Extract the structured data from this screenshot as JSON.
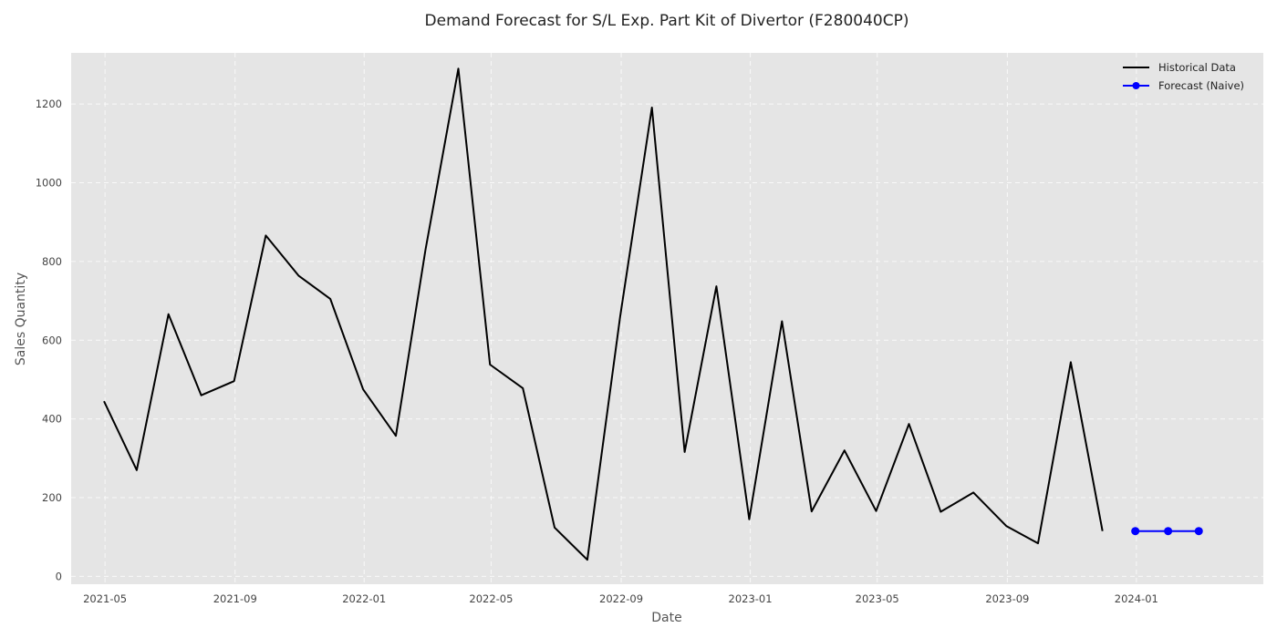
{
  "chart_data": {
    "type": "line",
    "title": "Demand Forecast for S/L Exp. Part Kit of Divertor (F280040CP)",
    "xlabel": "Date",
    "ylabel": "Sales Quantity",
    "grid": true,
    "legend_position": "top-right",
    "background_color": "#e5e5e5",
    "x_tick_labels": [
      "2021-05",
      "2021-09",
      "2022-01",
      "2022-05",
      "2022-09",
      "2023-01",
      "2023-05",
      "2023-09",
      "2024-01"
    ],
    "x_range": [
      "2021-03-30",
      "2024-04-30"
    ],
    "y_ticks": [
      0,
      200,
      400,
      600,
      800,
      1000,
      1200
    ],
    "ylim": [
      -20,
      1330
    ],
    "series": [
      {
        "name": "Historical Data",
        "color": "#000000",
        "marker": "none",
        "points": [
          [
            "2021-04-30",
            445
          ],
          [
            "2021-05-31",
            270
          ],
          [
            "2021-06-30",
            666
          ],
          [
            "2021-07-31",
            460
          ],
          [
            "2021-08-31",
            496
          ],
          [
            "2021-09-30",
            866
          ],
          [
            "2021-10-31",
            764
          ],
          [
            "2021-11-30",
            705
          ],
          [
            "2021-12-31",
            475
          ],
          [
            "2022-01-31",
            357
          ],
          [
            "2022-02-28",
            830
          ],
          [
            "2022-03-31",
            1290
          ],
          [
            "2022-04-30",
            538
          ],
          [
            "2022-05-31",
            478
          ],
          [
            "2022-06-30",
            124
          ],
          [
            "2022-07-31",
            42
          ],
          [
            "2022-08-31",
            660
          ],
          [
            "2022-09-30",
            1191
          ],
          [
            "2022-10-31",
            316
          ],
          [
            "2022-11-30",
            737
          ],
          [
            "2022-12-31",
            145
          ],
          [
            "2023-01-31",
            648
          ],
          [
            "2023-02-28",
            165
          ],
          [
            "2023-03-31",
            320
          ],
          [
            "2023-04-30",
            166
          ],
          [
            "2023-05-31",
            387
          ],
          [
            "2023-06-30",
            164
          ],
          [
            "2023-07-31",
            213
          ],
          [
            "2023-08-31",
            128
          ],
          [
            "2023-09-30",
            84
          ],
          [
            "2023-10-31",
            544
          ],
          [
            "2023-11-30",
            115
          ]
        ]
      },
      {
        "name": "Forecast (Naive)",
        "color": "#0000ff",
        "marker": "circle",
        "points": [
          [
            "2023-12-31",
            115
          ],
          [
            "2024-01-31",
            115
          ],
          [
            "2024-02-29",
            115
          ]
        ]
      }
    ]
  }
}
